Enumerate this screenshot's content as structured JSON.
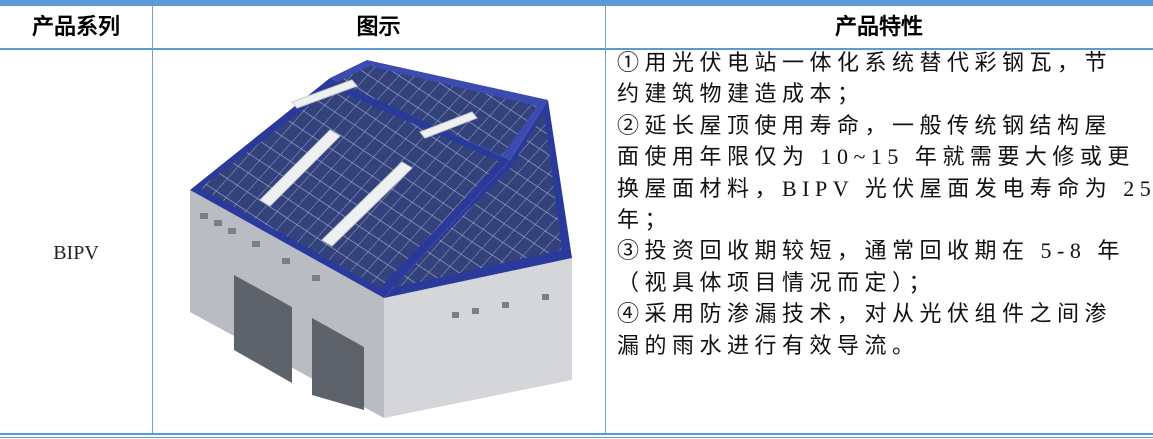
{
  "table": {
    "header": [
      "产品系列",
      "图示",
      "产品特性"
    ],
    "rows": [
      [
        "BIPV",
        [
          "①用光伏电站一体化系统替代彩钢瓦，节",
          "约建筑物建造成本；",
          "②延长屋顶使用寿命，一般传统钢结构屋",
          "面使用年限仅为 10~15 年就需要大修或更",
          "换屋面材料，BIPV 光伏屋面发电寿命为 25",
          "年；",
          "③投资回收期较短，通常回收期在 5-8 年",
          "（视具体项目情况而定）；",
          "④采用防渗漏技术，对从光伏组件之间渗",
          "漏的雨水进行有效导流。"
        ]
      ]
    ]
  }
}
